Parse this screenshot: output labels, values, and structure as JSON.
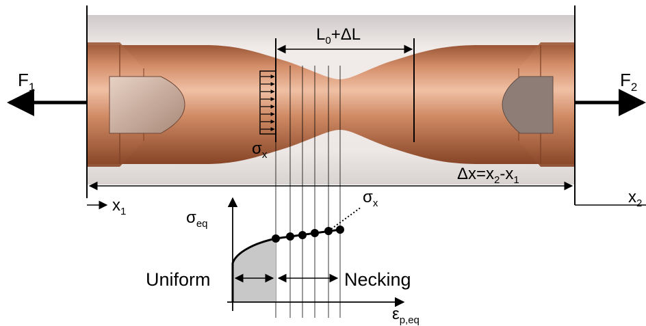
{
  "labels": {
    "force_left": "F",
    "force_left_sub": "1",
    "force_right": "F",
    "force_right_sub": "2",
    "gauge_main": "L",
    "gauge_sub": "0",
    "gauge_rest": "+ΔL",
    "sigma_x_sym": "σ",
    "sigma_x_sub": "x",
    "dx_main": "Δx=x",
    "dx_sub2": "2",
    "dx_mid": "-x",
    "dx_sub1": "1",
    "x1_main": "x",
    "x1_sub": "1",
    "x2_main": "x",
    "x2_sub": "2",
    "sigma_eq_sym": "σ",
    "sigma_eq_sub": "eq",
    "sigma_x_curve_sym": "σ",
    "sigma_x_curve_sub": "x",
    "eps_sym": "ε",
    "eps_sub": "p,eq",
    "uniform": "Uniform",
    "necking": "Necking"
  },
  "colors": {
    "copper_light": "#e2a98a",
    "copper_mid": "#c47a52",
    "copper_dark": "#8a4a2c",
    "background_photo": "#ece6e4",
    "uniform_fill": "#c8c8c8",
    "line": "#000000"
  }
}
